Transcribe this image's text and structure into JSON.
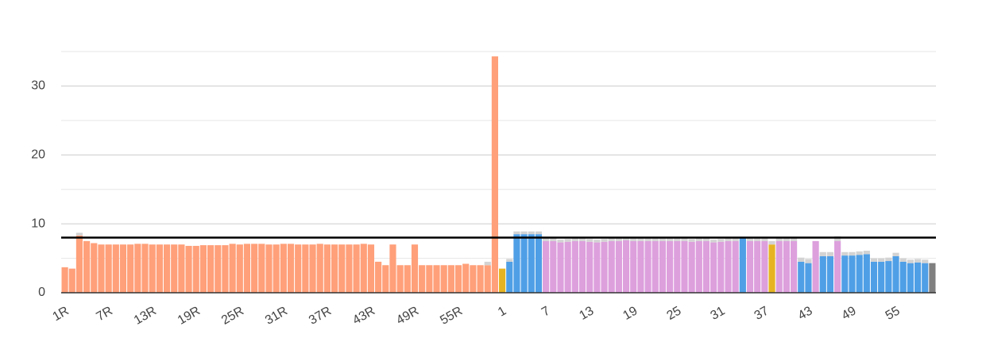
{
  "chart_data": {
    "type": "bar",
    "stacked": true,
    "categories": [
      "1R",
      null,
      null,
      null,
      null,
      null,
      "7R",
      null,
      null,
      null,
      null,
      null,
      "13R",
      null,
      null,
      null,
      null,
      null,
      "19R",
      null,
      null,
      null,
      null,
      null,
      "25R",
      null,
      null,
      null,
      null,
      null,
      "31R",
      null,
      null,
      null,
      null,
      null,
      "37R",
      null,
      null,
      null,
      null,
      null,
      "43R",
      null,
      null,
      null,
      null,
      null,
      "49R",
      null,
      null,
      null,
      null,
      null,
      "55R",
      null,
      null,
      null,
      null,
      null,
      "1",
      null,
      null,
      null,
      null,
      null,
      "7",
      null,
      null,
      null,
      null,
      null,
      "13",
      null,
      null,
      null,
      null,
      null,
      "19",
      null,
      null,
      null,
      null,
      null,
      "25",
      null,
      null,
      null,
      null,
      null,
      "31",
      null,
      null,
      null,
      null,
      null,
      "37",
      null,
      null,
      null,
      null,
      null,
      "43",
      null,
      null,
      null,
      null,
      null,
      "49",
      null,
      null,
      null,
      null,
      null,
      "55",
      null,
      null,
      null,
      null,
      null
    ],
    "series": [
      {
        "colors": [
          "#ffa07a",
          "#ffa07a",
          "#ffa07a",
          "#ffa07a",
          "#ffa07a",
          "#ffa07a",
          "#ffa07a",
          "#ffa07a",
          "#ffa07a",
          "#ffa07a",
          "#ffa07a",
          "#ffa07a",
          "#ffa07a",
          "#ffa07a",
          "#ffa07a",
          "#ffa07a",
          "#ffa07a",
          "#ffa07a",
          "#ffa07a",
          "#ffa07a",
          "#ffa07a",
          "#ffa07a",
          "#ffa07a",
          "#ffa07a",
          "#ffa07a",
          "#ffa07a",
          "#ffa07a",
          "#ffa07a",
          "#ffa07a",
          "#ffa07a",
          "#ffa07a",
          "#ffa07a",
          "#ffa07a",
          "#ffa07a",
          "#ffa07a",
          "#ffa07a",
          "#ffa07a",
          "#ffa07a",
          "#ffa07a",
          "#ffa07a",
          "#ffa07a",
          "#ffa07a",
          "#ffa07a",
          "#ffa07a",
          "#ffa07a",
          "#ffa07a",
          "#ffa07a",
          "#ffa07a",
          "#ffa07a",
          "#ffa07a",
          "#ffa07a",
          "#ffa07a",
          "#ffa07a",
          "#ffa07a",
          "#ffa07a",
          "#ffa07a",
          "#ffa07a",
          "#ffa07a",
          "#ffa07a",
          "#ffa07a",
          "#e6b422",
          "#4f9fe6",
          "#4f9fe6",
          "#4f9fe6",
          "#4f9fe6",
          "#4f9fe6",
          "#dda0dd",
          "#dda0dd",
          "#dda0dd",
          "#dda0dd",
          "#dda0dd",
          "#dda0dd",
          "#dda0dd",
          "#dda0dd",
          "#dda0dd",
          "#dda0dd",
          "#dda0dd",
          "#dda0dd",
          "#dda0dd",
          "#dda0dd",
          "#dda0dd",
          "#dda0dd",
          "#dda0dd",
          "#dda0dd",
          "#dda0dd",
          "#dda0dd",
          "#dda0dd",
          "#dda0dd",
          "#dda0dd",
          "#dda0dd",
          "#dda0dd",
          "#dda0dd",
          "#dda0dd",
          "#4f9fe6",
          "#dda0dd",
          "#dda0dd",
          "#dda0dd",
          "#e6b422",
          "#dda0dd",
          "#dda0dd",
          "#dda0dd",
          "#4f9fe6",
          "#4f9fe6",
          "#dda0dd",
          "#4f9fe6",
          "#4f9fe6",
          "#dda0dd",
          "#4f9fe6",
          "#4f9fe6",
          "#4f9fe6",
          "#4f9fe6",
          "#4f9fe6",
          "#4f9fe6",
          "#4f9fe6",
          "#4f9fe6",
          "#4f9fe6",
          "#4f9fe6",
          "#4f9fe6",
          "#4f9fe6",
          "#808080"
        ],
        "values": [
          3.7,
          3.5,
          8.3,
          7.5,
          7.2,
          7.0,
          7.0,
          7.0,
          7.0,
          7.0,
          7.1,
          7.1,
          7.0,
          7.0,
          7.0,
          7.0,
          7.0,
          6.8,
          6.8,
          6.9,
          6.9,
          6.9,
          6.9,
          7.1,
          7.0,
          7.1,
          7.1,
          7.1,
          7.0,
          7.0,
          7.1,
          7.1,
          7.0,
          7.0,
          7.0,
          7.1,
          7.0,
          7.0,
          7.0,
          7.0,
          7.0,
          7.1,
          7.0,
          4.5,
          4.0,
          7.0,
          4.0,
          4.0,
          7.0,
          4.0,
          4.0,
          4.0,
          4.0,
          4.0,
          4.0,
          4.2,
          4.0,
          4.0,
          4.0,
          34.3,
          3.5,
          4.5,
          8.5,
          8.5,
          8.5,
          8.5,
          7.5,
          7.5,
          7.3,
          7.4,
          7.5,
          7.5,
          7.4,
          7.3,
          7.4,
          7.5,
          7.5,
          7.6,
          7.5,
          7.5,
          7.5,
          7.5,
          7.5,
          7.5,
          7.5,
          7.5,
          7.4,
          7.5,
          7.5,
          7.3,
          7.4,
          7.5,
          7.5,
          8.0,
          7.5,
          7.5,
          7.5,
          7.0,
          7.5,
          7.5,
          7.5,
          4.5,
          4.3,
          7.5,
          5.3,
          5.3,
          7.5,
          5.4,
          5.4,
          5.5,
          5.6,
          4.5,
          4.5,
          4.6,
          5.3,
          4.5,
          4.3,
          4.4,
          4.3,
          4.3
        ]
      },
      {
        "color": "#d3d3d3",
        "values": [
          0,
          0,
          0.4,
          0,
          0,
          0,
          0,
          0,
          0,
          0,
          0,
          0,
          0,
          0,
          0,
          0,
          0,
          0,
          0,
          0,
          0,
          0,
          0,
          0,
          0,
          0,
          0,
          0,
          0,
          0,
          0,
          0,
          0,
          0,
          0,
          0,
          0,
          0,
          0,
          0,
          0,
          0,
          0,
          0,
          0,
          0,
          0,
          0,
          0,
          0,
          0,
          0,
          0,
          0,
          0,
          0,
          0,
          0,
          0.5,
          0,
          0,
          0.4,
          0.4,
          0.4,
          0.4,
          0.4,
          0.4,
          0.4,
          0.4,
          0.4,
          0.4,
          0.4,
          0.4,
          0.4,
          0.4,
          0.4,
          0.4,
          0.4,
          0.4,
          0.4,
          0.4,
          0.4,
          0.4,
          0.4,
          0.4,
          0.4,
          0.4,
          0.4,
          0.4,
          0.4,
          0.4,
          0.4,
          0.4,
          0,
          0.4,
          0.4,
          0.4,
          0.5,
          0.4,
          0.4,
          0.4,
          0.6,
          0.6,
          0,
          0.6,
          0.6,
          0.7,
          0.5,
          0.5,
          0.5,
          0.5,
          0.5,
          0.5,
          0.5,
          0.5,
          0.5,
          0.5,
          0.5,
          0.5,
          0
        ]
      }
    ],
    "ylim": [
      0,
      35
    ],
    "yticks": [
      0,
      10,
      20,
      30
    ],
    "minor_yticks": [
      5,
      15,
      25,
      35
    ],
    "grid": true,
    "reference_line": {
      "value": 8,
      "color": "#000000"
    }
  }
}
